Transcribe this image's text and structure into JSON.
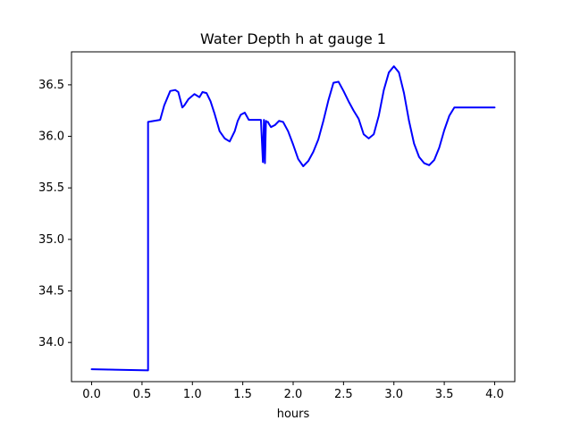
{
  "chart_data": {
    "type": "line",
    "title": "Water Depth h at gauge 1",
    "xlabel": "hours",
    "ylabel": "",
    "xlim": [
      -0.2,
      4.2
    ],
    "ylim": [
      33.62,
      36.82
    ],
    "x_ticks": [
      0.0,
      0.5,
      1.0,
      1.5,
      2.0,
      2.5,
      3.0,
      3.5,
      4.0
    ],
    "x_tick_labels": [
      "0.0",
      "0.5",
      "1.0",
      "1.5",
      "2.0",
      "2.5",
      "3.0",
      "3.5",
      "4.0"
    ],
    "y_ticks": [
      34.0,
      34.5,
      35.0,
      35.5,
      36.0,
      36.5
    ],
    "y_tick_labels": [
      "34.0",
      "34.5",
      "35.0",
      "35.5",
      "36.0",
      "36.5"
    ],
    "grid": false,
    "legend": "none",
    "line_color": "#0000ff",
    "series": [
      {
        "x": [
          0.0,
          0.56,
          0.56,
          0.68,
          0.72,
          0.78,
          0.83,
          0.86,
          0.9,
          0.92,
          0.96,
          1.02,
          1.07,
          1.1,
          1.14,
          1.18,
          1.22,
          1.27,
          1.32,
          1.37,
          1.42,
          1.45,
          1.48,
          1.52,
          1.56,
          1.6,
          1.64,
          1.68,
          1.7,
          1.71,
          1.72,
          1.73,
          1.74,
          1.75,
          1.76,
          1.78,
          1.82,
          1.86,
          1.9,
          1.95,
          2.0,
          2.05,
          2.1,
          2.15,
          2.2,
          2.25,
          2.3,
          2.35,
          2.4,
          2.45,
          2.5,
          2.55,
          2.6,
          2.65,
          2.7,
          2.75,
          2.8,
          2.85,
          2.9,
          2.95,
          3.0,
          3.05,
          3.1,
          3.15,
          3.2,
          3.25,
          3.3,
          3.35,
          3.4,
          3.45,
          3.5,
          3.55,
          3.6,
          3.65,
          3.7,
          3.75,
          3.8,
          3.85,
          3.9,
          3.95,
          4.0
        ],
        "y": [
          33.74,
          33.73,
          36.14,
          36.16,
          36.3,
          36.44,
          36.45,
          36.43,
          36.28,
          36.3,
          36.36,
          36.41,
          36.38,
          36.43,
          36.42,
          36.34,
          36.22,
          36.05,
          35.98,
          35.95,
          36.05,
          36.15,
          36.21,
          36.23,
          36.16,
          36.16,
          36.16,
          36.16,
          35.75,
          36.16,
          35.74,
          36.15,
          36.14,
          36.14,
          36.12,
          36.09,
          36.11,
          36.15,
          36.14,
          36.05,
          35.92,
          35.78,
          35.71,
          35.76,
          35.85,
          35.97,
          36.15,
          36.35,
          36.52,
          36.53,
          36.44,
          36.34,
          36.25,
          36.17,
          36.02,
          35.98,
          36.02,
          36.2,
          36.45,
          36.62,
          36.68,
          36.62,
          36.42,
          36.15,
          35.93,
          35.8,
          35.74,
          35.72,
          35.77,
          35.89,
          36.06,
          36.2,
          36.28,
          36.28,
          36.28,
          36.28,
          36.28,
          36.28,
          36.28,
          36.28,
          36.28
        ]
      }
    ]
  }
}
